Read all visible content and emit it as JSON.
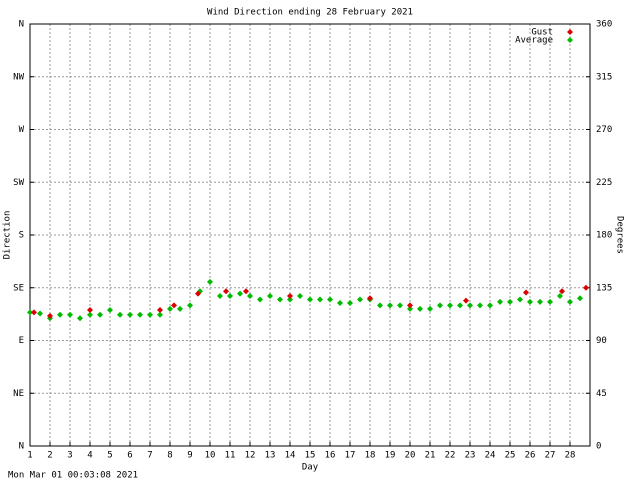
{
  "chart_data": {
    "type": "scatter",
    "title": "Wind Direction ending 28 February 2021",
    "x_label": "Day",
    "y_label": "Direction",
    "y2_label": "Degrees",
    "footer": "Mon Mar 01 00:03:08 2021",
    "xlim": [
      1,
      29
    ],
    "xticks": [
      1,
      2,
      3,
      4,
      5,
      6,
      7,
      8,
      9,
      10,
      11,
      12,
      13,
      14,
      15,
      16,
      17,
      18,
      19,
      20,
      21,
      22,
      23,
      24,
      25,
      26,
      27,
      28
    ],
    "ylim": [
      0,
      360
    ],
    "yticks": [
      {
        "value": 0,
        "label": "N"
      },
      {
        "value": 45,
        "label": "NE"
      },
      {
        "value": 90,
        "label": "E"
      },
      {
        "value": 135,
        "label": "SE"
      },
      {
        "value": 180,
        "label": "S"
      },
      {
        "value": 225,
        "label": "SW"
      },
      {
        "value": 270,
        "label": "W"
      },
      {
        "value": 315,
        "label": "NW"
      },
      {
        "value": 360,
        "label": "N"
      }
    ],
    "y2lim": [
      0,
      360
    ],
    "y2ticks": [
      0,
      45,
      90,
      135,
      180,
      225,
      270,
      315,
      360
    ],
    "grid": true,
    "legend": "top-right",
    "series": [
      {
        "name": "Gust",
        "color": "#dd0000",
        "x": [
          1.2,
          2,
          4,
          7.5,
          8.2,
          9.4,
          10.8,
          11.8,
          14,
          18,
          20,
          22.8,
          25.8,
          27.6,
          28.8
        ],
        "values": [
          114,
          111,
          116,
          116,
          120,
          130,
          132,
          132,
          128,
          126,
          120,
          124,
          131,
          132,
          135
        ]
      },
      {
        "name": "Average",
        "color": "#00bb00",
        "x": [
          1,
          1.5,
          2,
          2.5,
          3,
          3.5,
          4,
          4.5,
          5,
          5.5,
          6,
          6.5,
          7,
          7.5,
          8,
          8.5,
          9,
          9.5,
          10,
          10.5,
          11,
          11.5,
          12,
          12.5,
          13,
          13.5,
          14,
          14.5,
          15,
          15.5,
          16,
          16.5,
          17,
          17.5,
          18,
          18.5,
          19,
          19.5,
          20,
          20.5,
          21,
          21.5,
          22,
          22.5,
          23,
          23.5,
          24,
          24.5,
          25,
          25.5,
          26,
          26.5,
          27,
          27.5,
          28,
          28.5
        ],
        "values": [
          114,
          113,
          109,
          112,
          112,
          109,
          112,
          112,
          116,
          112,
          112,
          112,
          112,
          112,
          117,
          117,
          120,
          132,
          140,
          128,
          128,
          130,
          128,
          125,
          128,
          125,
          125,
          128,
          125,
          125,
          125,
          122,
          122,
          125,
          125,
          120,
          120,
          120,
          117,
          117,
          117,
          120,
          120,
          120,
          120,
          120,
          120,
          123,
          123,
          125,
          123,
          123,
          123,
          128,
          123,
          126
        ]
      }
    ]
  }
}
